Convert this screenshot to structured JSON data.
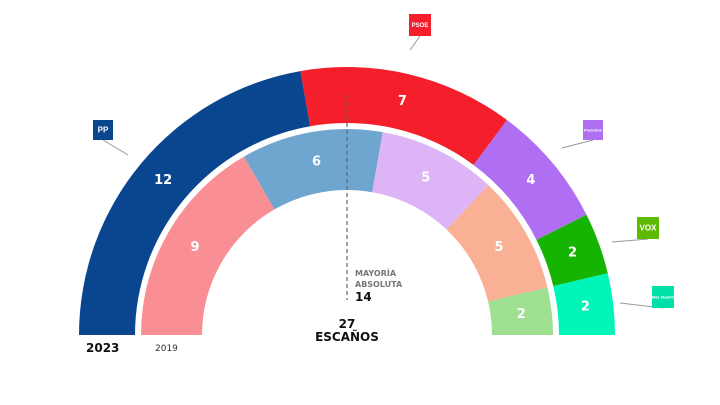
{
  "chart_data": {
    "type": "parliament-semicircle",
    "title": "",
    "total_label": "27",
    "total_unit": "ESCAÑOS",
    "majority": {
      "line1": "MAYORÍA",
      "line2": "ABSOLUTA",
      "value": "14"
    },
    "rings": [
      {
        "year": "2023",
        "segments": [
          {
            "party": "PP",
            "seats": 12,
            "color": "#0a4690"
          },
          {
            "party": "PSOE",
            "seats": 7,
            "color": "#f51f2b"
          },
          {
            "party": "Podemos",
            "seats": 4,
            "color": "#b06ef2"
          },
          {
            "party": "VOX",
            "seats": 2,
            "color": "#14b400"
          },
          {
            "party": "Más Madrid",
            "seats": 2,
            "color": "#00f5b9"
          }
        ]
      },
      {
        "year": "2019",
        "segments": [
          {
            "seats": 9,
            "color": "#f98f95"
          },
          {
            "seats": 6,
            "color": "#6ea6cf"
          },
          {
            "seats": 5,
            "color": "#ddb5f6"
          },
          {
            "seats": 5,
            "color": "#f9b095"
          },
          {
            "seats": 2,
            "color": "#9fdf90"
          }
        ]
      }
    ],
    "logos": [
      {
        "party": "PP",
        "text": "PP",
        "color": "#0a4690"
      },
      {
        "party": "PSOE",
        "text": "PSOE",
        "color": "#f51f2b"
      },
      {
        "party": "Podemos",
        "text": "Podemos",
        "color": "#b06ef2"
      },
      {
        "party": "VOX",
        "text": "VOX",
        "color": "#5cba00"
      },
      {
        "party": "Más Madrid",
        "text": "Más Madrid",
        "color": "#00e0a8"
      }
    ]
  }
}
